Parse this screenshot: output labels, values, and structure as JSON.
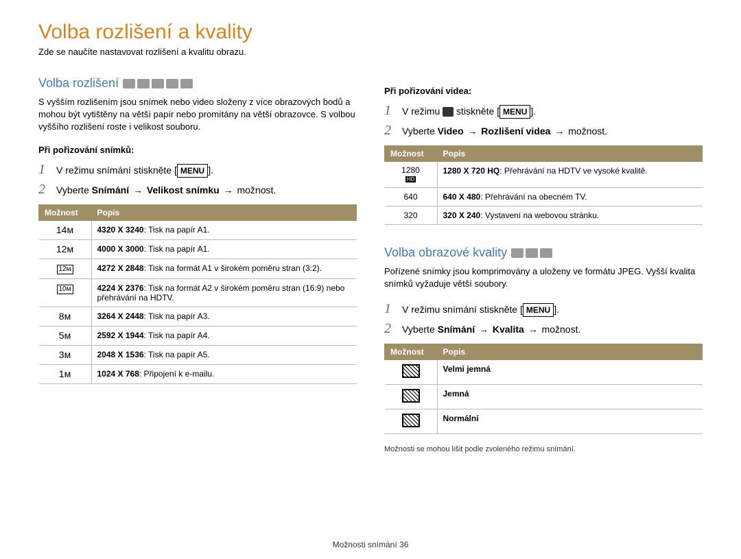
{
  "pageTitle": "Volba rozlišení a kvality",
  "pageSubtitle": "Zde se naučíte nastavovat rozlišení a kvalitu obrazu.",
  "menuLabel": "MENU",
  "arrow": "→",
  "left": {
    "sectionTitle": "Volba rozlišení",
    "modeIconCount": 5,
    "paragraph": "S vyšším rozlišením jsou snímek nebo video složeny z více obrazových bodů a mohou být vytištěny na větší papír nebo promítány na větší obrazovce. S volbou vyššího rozlišení roste i velikost souboru.",
    "subHeading": "Při pořizování snímků:",
    "step1": {
      "pre": "V režimu snímání stiskněte [",
      "post": "]."
    },
    "step2": {
      "pre": "Vyberte ",
      "b1": "Snímání",
      "mid": "Velikost snímku",
      "post": " možnost."
    },
    "table": {
      "headers": [
        "Možnost",
        "Popis"
      ],
      "rows": [
        {
          "icon": "14ᴍ",
          "boxed": false,
          "b": "4320 X 3240",
          "t": ": Tisk na papír A1."
        },
        {
          "icon": "12ᴍ",
          "boxed": false,
          "b": "4000 X 3000",
          "t": ": Tisk na papír A1."
        },
        {
          "icon": "12ᴍ",
          "boxed": true,
          "b": "4272 X 2848",
          "t": ": Tisk na formát A1 v širokém poměru stran (3:2)."
        },
        {
          "icon": "10ᴍ",
          "boxed": true,
          "b": "4224 X 2376",
          "t": ": Tisk na formát A2 v širokém poměru stran (16:9) nebo přehrávání na HDTV."
        },
        {
          "icon": "8ᴍ",
          "boxed": false,
          "b": "3264 X 2448",
          "t": ": Tisk na papír A3."
        },
        {
          "icon": "5ᴍ",
          "boxed": false,
          "b": "2592 X 1944",
          "t": ": Tisk na papír A4."
        },
        {
          "icon": "3ᴍ",
          "boxed": false,
          "b": "2048 X 1536",
          "t": ": Tisk na papír A5."
        },
        {
          "icon": "1ᴍ",
          "boxed": false,
          "b": "1024 X 768",
          "t": ": Připojení k e-mailu."
        }
      ]
    }
  },
  "right": {
    "videoHeading": "Při pořizování videa:",
    "vstep1": {
      "pre": "V režimu ",
      "mid": " stiskněte [",
      "post": "]."
    },
    "vstep2": {
      "pre": "Vyberte ",
      "b1": "Video",
      "mid": "Rozlišení videa",
      "post": " možnost."
    },
    "videoTable": {
      "headers": [
        "Možnost",
        "Popis"
      ],
      "rows": [
        {
          "icon": "1280",
          "sub": "HD",
          "b": "1280 X 720 HQ",
          "t": ": Přehrávání na HDTV ve vysoké kvalitě."
        },
        {
          "icon": "640",
          "sub": "",
          "b": "640 X 480",
          "t": ": Přehrávání na obecném TV."
        },
        {
          "icon": "320",
          "sub": "",
          "b": "320 X 240",
          "t": ": Vystavení na webovou stránku."
        }
      ]
    },
    "qualityTitle": "Volba obrazové kvality",
    "qualityModeIconCount": 3,
    "qualityParagraph": "Pořízené snímky jsou komprimovány a uloženy ve formátu JPEG. Vyšší kvalita snímků vyžaduje větší soubory.",
    "qstep1": {
      "pre": "V režimu snímání stiskněte [",
      "post": "]."
    },
    "qstep2": {
      "pre": "Vyberte ",
      "b1": "Snímání",
      "mid": "Kvalita",
      "post": " možnost."
    },
    "qualityTable": {
      "headers": [
        "Možnost",
        "Popis"
      ],
      "rows": [
        {
          "label": "Velmi jemná"
        },
        {
          "label": "Jemná"
        },
        {
          "label": "Normální"
        }
      ]
    },
    "footNote": "Možnosti se mohou lišit podle zvoleného režimu snímání."
  },
  "footer": {
    "label": "Možnosti snímání",
    "page": "36"
  }
}
